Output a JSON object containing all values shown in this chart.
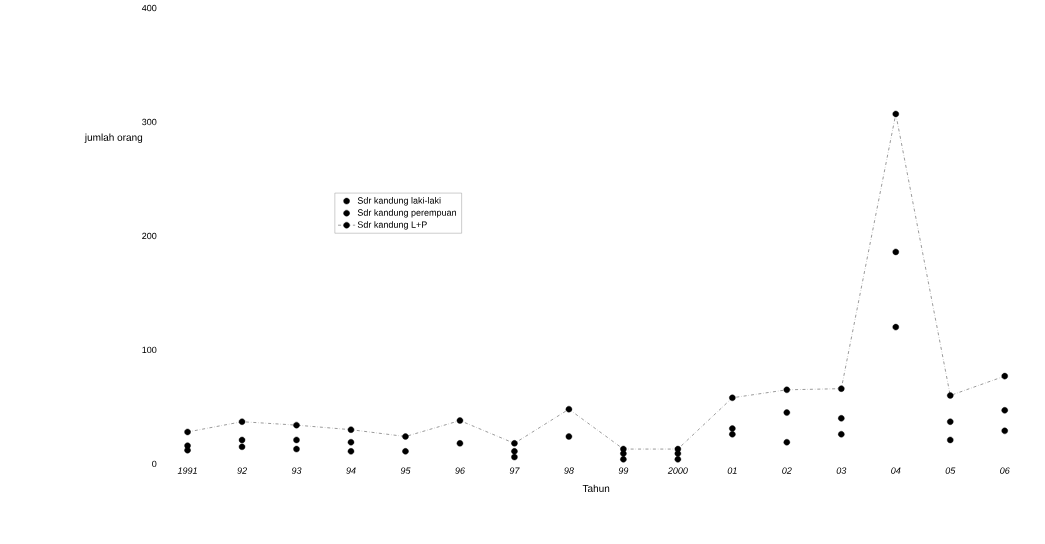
{
  "chart_data": {
    "type": "scatter",
    "xlabel": "Tahun",
    "ylabel": "jumlah orang",
    "categories": [
      "1991",
      "92",
      "93",
      "94",
      "95",
      "96",
      "97",
      "98",
      "99",
      "2000",
      "01",
      "02",
      "03",
      "04",
      "05",
      "06"
    ],
    "ylim": [
      0,
      400
    ],
    "yticks": [
      0,
      100,
      200,
      300,
      400
    ],
    "legend": "left",
    "marker": "circle",
    "series": [
      {
        "name": "Sdr kandung laki-laki",
        "color": "#000000",
        "values": [
          16,
          21,
          21,
          19,
          null,
          null,
          11,
          null,
          9,
          9,
          31,
          45,
          40,
          186,
          37,
          47
        ]
      },
      {
        "name": "Sdr kandung perempuan",
        "color": "#000000",
        "values": [
          12,
          15,
          13,
          11,
          11,
          18,
          6,
          24,
          4,
          4,
          26,
          19,
          26,
          120,
          21,
          29
        ]
      },
      {
        "name": "Sdr kandung L+P",
        "type": "line",
        "line_style": "dashed",
        "color": "#000000",
        "values": [
          28,
          37,
          34,
          30,
          24,
          38,
          18,
          48,
          13,
          13,
          58,
          65,
          66,
          307,
          60,
          77
        ]
      }
    ]
  }
}
